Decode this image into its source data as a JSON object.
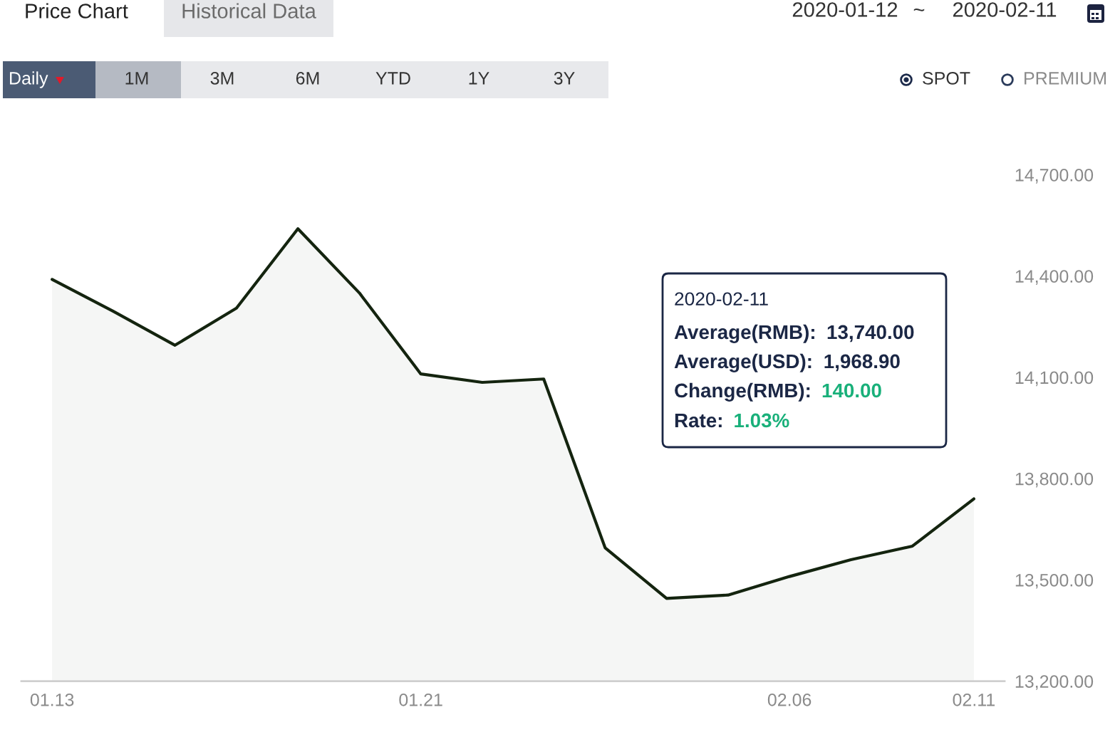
{
  "chart_data": {
    "type": "area",
    "categories": [
      "01.13",
      null,
      null,
      null,
      null,
      null,
      "01.21",
      null,
      null,
      null,
      null,
      null,
      "02.06",
      null,
      null,
      "02.11"
    ],
    "series": [
      {
        "color": "#14240f",
        "values": [
          14390,
          14295,
          14195,
          14305,
          14540,
          14350,
          14110,
          14085,
          14095,
          13595,
          13445,
          13455,
          13510,
          13560,
          13600,
          13740
        ]
      }
    ],
    "ylim": [
      13200,
      14700
    ],
    "yticks": [
      {
        "value": 13200,
        "label": "13,200.00"
      },
      {
        "value": 13500,
        "label": "13,500.00"
      },
      {
        "value": 13800,
        "label": "13,800.00"
      },
      {
        "value": 14100,
        "label": "14,100.00"
      },
      {
        "value": 14400,
        "label": "14,400.00"
      },
      {
        "value": 14700,
        "label": "14,700.00"
      }
    ],
    "grid": false,
    "legend": false,
    "marker": "none",
    "line_style": "solid",
    "annotations": [
      "Price Chart",
      "Historical Data",
      "2020-01-12",
      "~",
      "2020-02-11",
      "Daily",
      "1M",
      "3M",
      "6M",
      "YTD",
      "1Y",
      "3Y",
      "SPOT",
      "PREMIUM",
      "2020-02-11",
      "Average(RMB):",
      "13,740.00",
      "Average(USD):",
      "1,968.90",
      "Change(RMB):",
      "140.00",
      "Rate:",
      "1.03%"
    ]
  }
}
